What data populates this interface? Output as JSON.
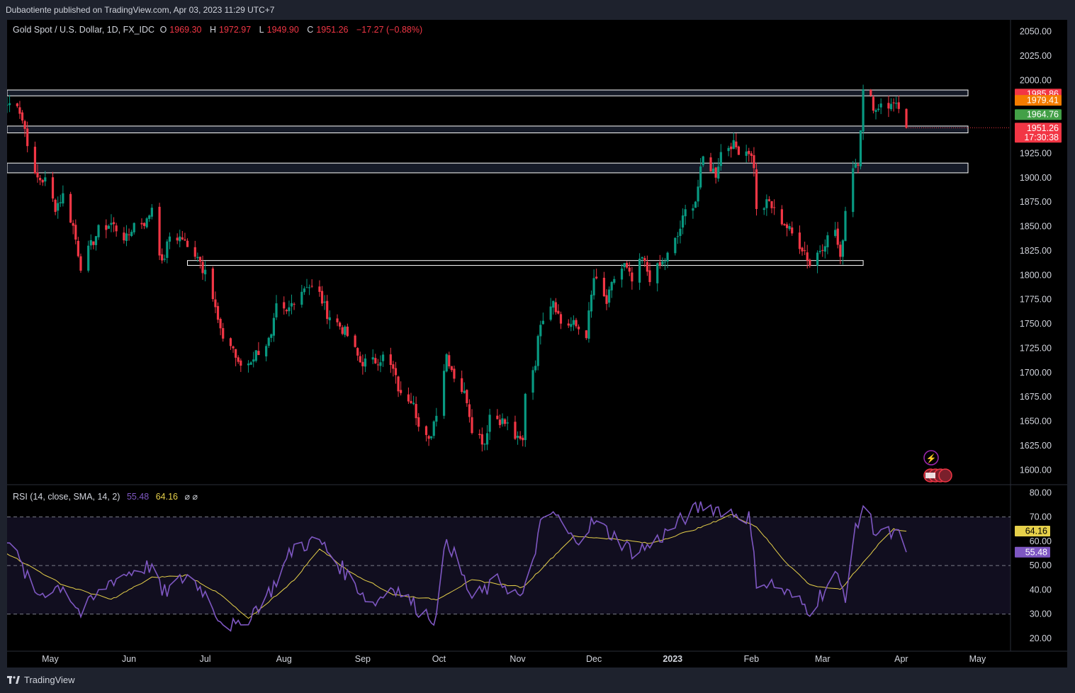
{
  "publisher": "Dubaotiente published on TradingView.com, Apr 03, 2023 11:29 UTC+7",
  "legend": {
    "symbol": "Gold Spot / U.S. Dollar, 1D, FX_IDC",
    "o_label": "O",
    "o": "1969.30",
    "h_label": "H",
    "h": "1972.97",
    "l_label": "L",
    "l": "1949.90",
    "c_label": "C",
    "c": "1951.26",
    "change": "−17.27 (−0.88%)"
  },
  "rsi_legend": {
    "title": "RSI (14, close, SMA, 14, 2)",
    "rsi": "55.48",
    "sma": "64.16",
    "ext": "⌀ ⌀"
  },
  "footer_brand": "TradingView",
  "colors": {
    "up": "#089981",
    "down": "#f23645",
    "rsi": "#7e57c2",
    "sma": "#e6d04a",
    "bg": "#000000",
    "frame": "#1e222d",
    "zone_fill": "#2b3550"
  },
  "chart_data": [
    {
      "type": "candlestick",
      "title": "Gold Spot / U.S. Dollar, 1D, FX_IDC",
      "ylim": [
        1585,
        2062
      ],
      "y_ticks": [
        1600,
        1625,
        1650,
        1675,
        1700,
        1725,
        1750,
        1775,
        1800,
        1825,
        1850,
        1875,
        1900,
        1925,
        2000,
        2025,
        2050
      ],
      "y_tick_labels": [
        "1600.00",
        "1625.00",
        "1650.00",
        "1675.00",
        "1700.00",
        "1725.00",
        "1750.00",
        "1775.00",
        "1800.00",
        "1825.00",
        "1850.00",
        "1875.00",
        "1900.00",
        "1925.00",
        "2000.00",
        "2025.00",
        "2050.00"
      ],
      "x_labels": [
        "May",
        "Jun",
        "Jul",
        "Aug",
        "Sep",
        "Oct",
        "Nov",
        "Dec",
        "2023",
        "Feb",
        "Mar",
        "Apr",
        "May"
      ],
      "x_label_dates": [
        "2022-05-01",
        "2022-06-01",
        "2022-07-01",
        "2022-08-01",
        "2022-09-01",
        "2022-10-01",
        "2022-11-01",
        "2022-12-01",
        "2023-01-01",
        "2023-02-01",
        "2023-03-01",
        "2023-04-01",
        "2023-05-01"
      ],
      "x_range": [
        "2022-04-14",
        "2023-05-14"
      ],
      "close_path": [
        [
          "2022-04-14",
          1975
        ],
        [
          "2022-04-18",
          1978
        ],
        [
          "2022-04-21",
          1950
        ],
        [
          "2022-04-25",
          1900
        ],
        [
          "2022-04-29",
          1897
        ],
        [
          "2022-05-03",
          1870
        ],
        [
          "2022-05-06",
          1882
        ],
        [
          "2022-05-10",
          1850
        ],
        [
          "2022-05-13",
          1810
        ],
        [
          "2022-05-16",
          1825
        ],
        [
          "2022-05-20",
          1846
        ],
        [
          "2022-05-25",
          1853
        ],
        [
          "2022-05-31",
          1837
        ],
        [
          "2022-06-03",
          1853
        ],
        [
          "2022-06-08",
          1855
        ],
        [
          "2022-06-10",
          1871
        ],
        [
          "2022-06-14",
          1810
        ],
        [
          "2022-06-17",
          1840
        ],
        [
          "2022-06-22",
          1838
        ],
        [
          "2022-06-24",
          1827
        ],
        [
          "2022-06-28",
          1822
        ],
        [
          "2022-06-30",
          1807
        ],
        [
          "2022-07-01",
          1811
        ],
        [
          "2022-07-05",
          1765
        ],
        [
          "2022-07-07",
          1740
        ],
        [
          "2022-07-12",
          1725
        ],
        [
          "2022-07-14",
          1707
        ],
        [
          "2022-07-18",
          1710
        ],
        [
          "2022-07-21",
          1720
        ],
        [
          "2022-07-27",
          1735
        ],
        [
          "2022-07-29",
          1766
        ],
        [
          "2022-08-02",
          1760
        ],
        [
          "2022-08-05",
          1776
        ],
        [
          "2022-08-10",
          1791
        ],
        [
          "2022-08-15",
          1780
        ],
        [
          "2022-08-18",
          1761
        ],
        [
          "2022-08-23",
          1748
        ],
        [
          "2022-08-26",
          1738
        ],
        [
          "2022-08-31",
          1711
        ],
        [
          "2022-09-05",
          1711
        ],
        [
          "2022-09-09",
          1716
        ],
        [
          "2022-09-13",
          1702
        ],
        [
          "2022-09-16",
          1675
        ],
        [
          "2022-09-21",
          1674
        ],
        [
          "2022-09-23",
          1644
        ],
        [
          "2022-09-27",
          1628
        ],
        [
          "2022-09-30",
          1661
        ],
        [
          "2022-10-04",
          1719
        ],
        [
          "2022-10-07",
          1697
        ],
        [
          "2022-10-12",
          1673
        ],
        [
          "2022-10-14",
          1644
        ],
        [
          "2022-10-19",
          1628
        ],
        [
          "2022-10-21",
          1657
        ],
        [
          "2022-10-25",
          1652
        ],
        [
          "2022-10-28",
          1646
        ],
        [
          "2022-11-01",
          1630
        ],
        [
          "2022-11-03",
          1629
        ],
        [
          "2022-11-04",
          1681
        ],
        [
          "2022-11-08",
          1712
        ],
        [
          "2022-11-10",
          1754
        ],
        [
          "2022-11-15",
          1776
        ],
        [
          "2022-11-18",
          1751
        ],
        [
          "2022-11-23",
          1749
        ],
        [
          "2022-11-28",
          1740
        ],
        [
          "2022-12-01",
          1797
        ],
        [
          "2022-12-06",
          1771
        ],
        [
          "2022-12-09",
          1797
        ],
        [
          "2022-12-13",
          1810
        ],
        [
          "2022-12-16",
          1793
        ],
        [
          "2022-12-20",
          1817
        ],
        [
          "2022-12-23",
          1798
        ],
        [
          "2022-12-29",
          1815
        ],
        [
          "2023-01-03",
          1840
        ],
        [
          "2023-01-06",
          1865
        ],
        [
          "2023-01-10",
          1877
        ],
        [
          "2023-01-13",
          1920
        ],
        [
          "2023-01-18",
          1904
        ],
        [
          "2023-01-20",
          1926
        ],
        [
          "2023-01-24",
          1935
        ],
        [
          "2023-01-27",
          1929
        ],
        [
          "2023-01-31",
          1928
        ],
        [
          "2023-02-02",
          1913
        ],
        [
          "2023-02-03",
          1865
        ],
        [
          "2023-02-08",
          1875
        ],
        [
          "2023-02-10",
          1865
        ],
        [
          "2023-02-14",
          1853
        ],
        [
          "2023-02-17",
          1842
        ],
        [
          "2023-02-22",
          1825
        ],
        [
          "2023-02-24",
          1811
        ],
        [
          "2023-02-28",
          1827
        ],
        [
          "2023-03-02",
          1835
        ],
        [
          "2023-03-06",
          1847
        ],
        [
          "2023-03-08",
          1814
        ],
        [
          "2023-03-10",
          1867
        ],
        [
          "2023-03-13",
          1913
        ],
        [
          "2023-03-15",
          1918
        ],
        [
          "2023-03-17",
          1988
        ],
        [
          "2023-03-20",
          1980
        ],
        [
          "2023-03-22",
          1969
        ],
        [
          "2023-03-24",
          1978
        ],
        [
          "2023-03-28",
          1973
        ],
        [
          "2023-03-30",
          1980
        ],
        [
          "2023-03-31",
          1969
        ],
        [
          "2023-04-03",
          1951.26
        ]
      ],
      "zones": [
        {
          "from": 1984,
          "to": 1990
        },
        {
          "from": 1946,
          "to": 1953
        },
        {
          "from": 1905,
          "to": 1915
        },
        {
          "from": 1810,
          "to": 1815,
          "start": "2022-06-24",
          "end": "2023-03-17"
        }
      ],
      "price_labels": [
        {
          "value": 1985.86,
          "text": "1985.86",
          "color": "#f23645"
        },
        {
          "value": 1979.41,
          "text": "1979.41",
          "color": "#f57c00"
        },
        {
          "value": 1964.76,
          "text": "1964.76",
          "color": "#43a047"
        },
        {
          "value": 1951.26,
          "text": "1951.26",
          "sub": "17:30:38",
          "color": "#f23645"
        }
      ]
    },
    {
      "type": "line",
      "title": "RSI (14, close, SMA, 14, 2)",
      "ylim": [
        15,
        83
      ],
      "y_ticks": [
        20,
        30,
        40,
        50,
        60,
        70,
        80
      ],
      "y_tick_labels": [
        "20.00",
        "30.00",
        "40.00",
        "50.00",
        "60.00",
        "70.00",
        "80.00"
      ],
      "band": [
        30,
        70
      ],
      "series": [
        {
          "name": "RSI",
          "values_by_date": [
            [
              "2022-04-14",
              62
            ],
            [
              "2022-04-25",
              38
            ],
            [
              "2022-05-06",
              42
            ],
            [
              "2022-05-13",
              30
            ],
            [
              "2022-05-25",
              44
            ],
            [
              "2022-06-03",
              48
            ],
            [
              "2022-06-10",
              50
            ],
            [
              "2022-06-14",
              38
            ],
            [
              "2022-06-24",
              46
            ],
            [
              "2022-06-30",
              40
            ],
            [
              "2022-07-07",
              28
            ],
            [
              "2022-07-14",
              24
            ],
            [
              "2022-07-27",
              40
            ],
            [
              "2022-08-05",
              58
            ],
            [
              "2022-08-15",
              60
            ],
            [
              "2022-08-26",
              46
            ],
            [
              "2022-09-05",
              34
            ],
            [
              "2022-09-13",
              42
            ],
            [
              "2022-09-23",
              32
            ],
            [
              "2022-09-30",
              28
            ],
            [
              "2022-10-04",
              62
            ],
            [
              "2022-10-14",
              36
            ],
            [
              "2022-10-25",
              44
            ],
            [
              "2022-11-03",
              36
            ],
            [
              "2022-11-10",
              66
            ],
            [
              "2022-11-15",
              72
            ],
            [
              "2022-11-23",
              60
            ],
            [
              "2022-12-01",
              68
            ],
            [
              "2022-12-09",
              62
            ],
            [
              "2022-12-16",
              56
            ],
            [
              "2022-12-23",
              58
            ],
            [
              "2023-01-06",
              70
            ],
            [
              "2023-01-13",
              75
            ],
            [
              "2023-01-24",
              72
            ],
            [
              "2023-01-31",
              70
            ],
            [
              "2023-02-03",
              44
            ],
            [
              "2023-02-10",
              42
            ],
            [
              "2023-02-24",
              32
            ],
            [
              "2023-03-06",
              46
            ],
            [
              "2023-03-10",
              38
            ],
            [
              "2023-03-13",
              60
            ],
            [
              "2023-03-17",
              75
            ],
            [
              "2023-03-22",
              64
            ],
            [
              "2023-03-31",
              62
            ],
            [
              "2023-04-03",
              55.48
            ]
          ]
        },
        {
          "name": "SMA",
          "values_by_date": [
            [
              "2022-04-14",
              55
            ],
            [
              "2022-05-06",
              42
            ],
            [
              "2022-05-25",
              36
            ],
            [
              "2022-06-10",
              45
            ],
            [
              "2022-06-24",
              46
            ],
            [
              "2022-07-07",
              38
            ],
            [
              "2022-07-18",
              28
            ],
            [
              "2022-08-05",
              44
            ],
            [
              "2022-08-15",
              57
            ],
            [
              "2022-08-26",
              48
            ],
            [
              "2022-09-13",
              38
            ],
            [
              "2022-09-30",
              36
            ],
            [
              "2022-10-14",
              44
            ],
            [
              "2022-11-03",
              41
            ],
            [
              "2022-11-23",
              62
            ],
            [
              "2022-12-09",
              61
            ],
            [
              "2022-12-23",
              59
            ],
            [
              "2023-01-13",
              66
            ],
            [
              "2023-01-24",
              71
            ],
            [
              "2023-02-03",
              66
            ],
            [
              "2023-02-14",
              52
            ],
            [
              "2023-02-24",
              42
            ],
            [
              "2023-03-08",
              40
            ],
            [
              "2023-03-24",
              60
            ],
            [
              "2023-03-29",
              65
            ],
            [
              "2023-04-03",
              64.16
            ]
          ]
        }
      ],
      "price_labels": [
        {
          "value": 64.16,
          "text": "64.16",
          "color": "#e6d04a",
          "text_color": "#000000"
        },
        {
          "value": 55.48,
          "text": "55.48",
          "color": "#7e57c2",
          "text_color": "#ffffff"
        }
      ]
    }
  ]
}
